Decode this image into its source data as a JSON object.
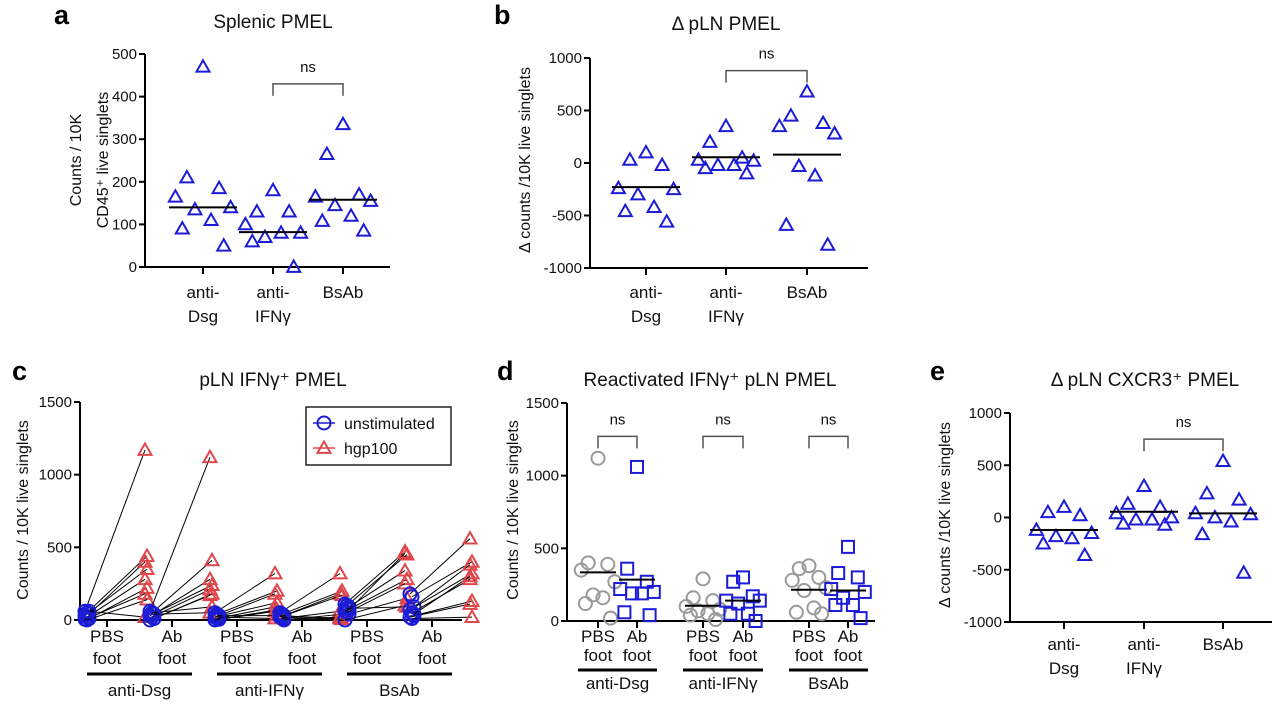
{
  "colors": {
    "blue": "#1c1cd6",
    "red": "#e0474c",
    "gray": "#9a9a9a",
    "axis": "#000000",
    "bracket": "#555555"
  },
  "chart_data": [
    {
      "id": "a",
      "letter": "a",
      "type": "scatter",
      "title": "Splenic PMEL",
      "ylabel": [
        "Counts / 10K",
        "CD45⁺ live singlets"
      ],
      "ylim": [
        0,
        500
      ],
      "yticks": [
        0,
        100,
        200,
        300,
        400,
        500
      ],
      "categories": [
        [
          "anti-",
          "Dsg"
        ],
        [
          "anti-",
          "IFNγ"
        ],
        [
          "BsAb"
        ]
      ],
      "marker": "triangle",
      "marker_color": "blue",
      "values": [
        [
          470,
          210,
          185,
          165,
          140,
          135,
          110,
          90,
          50
        ],
        [
          180,
          130,
          130,
          100,
          80,
          70,
          80,
          60,
          0
        ],
        [
          335,
          265,
          170,
          165,
          155,
          145,
          120,
          108,
          85
        ]
      ],
      "medians": [
        140,
        82,
        158
      ],
      "comparisons": [
        {
          "from": 1,
          "to": 2,
          "label": "ns",
          "at": 430
        }
      ]
    },
    {
      "id": "b",
      "letter": "b",
      "type": "scatter",
      "title": "Δ pLN PMEL",
      "ylabel": [
        "Δ counts /10K live singlets"
      ],
      "ylim": [
        -1000,
        1000
      ],
      "yticks": [
        -1000,
        -500,
        0,
        500,
        1000
      ],
      "categories": [
        [
          "anti-",
          "Dsg"
        ],
        [
          "anti-",
          "IFNγ"
        ],
        [
          "BsAb"
        ]
      ],
      "marker": "triangle",
      "marker_color": "blue",
      "values": [
        [
          100,
          30,
          -20,
          -240,
          -250,
          -300,
          -420,
          -460,
          -560
        ],
        [
          350,
          200,
          50,
          30,
          20,
          -20,
          -20,
          -50,
          -100
        ],
        [
          680,
          450,
          380,
          350,
          280,
          -30,
          -120,
          -590,
          -780
        ]
      ],
      "medians": [
        -230,
        55,
        80
      ],
      "comparisons": [
        {
          "from": 1,
          "to": 2,
          "label": "ns",
          "at": 880
        }
      ]
    },
    {
      "id": "c",
      "letter": "c",
      "type": "paired-line",
      "title": "pLN IFNγ⁺ PMEL",
      "ylabel": [
        "Counts / 10K live singlets"
      ],
      "ylim": [
        0,
        1500
      ],
      "yticks": [
        0,
        500,
        1000,
        1500
      ],
      "categories": [
        [
          "PBS",
          "foot"
        ],
        [
          "Ab",
          "foot"
        ],
        [
          "PBS",
          "foot"
        ],
        [
          "Ab",
          "foot"
        ],
        [
          "PBS",
          "foot"
        ],
        [
          "Ab",
          "foot"
        ]
      ],
      "groups": [
        "anti-Dsg",
        "anti-IFNγ",
        "BsAb"
      ],
      "legend": {
        "position": "top-right",
        "items": [
          {
            "label": "unstimulated",
            "marker": "circle",
            "color": "blue"
          },
          {
            "label": "hgp100",
            "marker": "triangle",
            "color": "red"
          }
        ]
      },
      "series": [
        {
          "name": "unstimulated",
          "values": [
            [
              60,
              50,
              40,
              30,
              20,
              10,
              5,
              0,
              60
            ],
            [
              60,
              50,
              40,
              30,
              20,
              10,
              0,
              50,
              40
            ],
            [
              50,
              40,
              30,
              20,
              10,
              5,
              0,
              30,
              20
            ],
            [
              50,
              40,
              30,
              20,
              10,
              0,
              30,
              20,
              5
            ],
            [
              110,
              100,
              90,
              60,
              50,
              40,
              0,
              80,
              70
            ],
            [
              180,
              160,
              90,
              70,
              50,
              30,
              20,
              10,
              40
            ]
          ]
        },
        {
          "name": "hgp100",
          "values": [
            [
              1170,
              440,
              400,
              350,
              280,
              220,
              180,
              140,
              20
            ],
            [
              1120,
              410,
              280,
              240,
              210,
              180,
              170,
              90,
              50
            ],
            [
              320,
              200,
              180,
              120,
              90,
              70,
              60,
              30,
              10
            ],
            [
              320,
              200,
              180,
              170,
              60,
              40,
              10,
              5,
              20
            ],
            [
              470,
              450,
              340,
              280,
              250,
              150,
              100,
              90,
              460
            ],
            [
              560,
              400,
              380,
              320,
              280,
              130,
              110,
              20,
              300
            ]
          ]
        }
      ]
    },
    {
      "id": "d",
      "letter": "d",
      "type": "scatter",
      "title": "Reactivated IFNγ⁺ pLN PMEL",
      "ylabel": [
        "Counts / 10K live singlets"
      ],
      "ylim": [
        0,
        1500
      ],
      "yticks": [
        0,
        500,
        1000,
        1500
      ],
      "categories": [
        [
          "PBS",
          "foot"
        ],
        [
          "Ab",
          "foot"
        ],
        [
          "PBS",
          "foot"
        ],
        [
          "Ab",
          "foot"
        ],
        [
          "PBS",
          "foot"
        ],
        [
          "Ab",
          "foot"
        ]
      ],
      "groups": [
        "anti-Dsg",
        "anti-IFNγ",
        "BsAb"
      ],
      "markers": [
        "circle",
        "square",
        "circle",
        "square",
        "circle",
        "square"
      ],
      "marker_colors": [
        "gray",
        "blue",
        "gray",
        "blue",
        "gray",
        "blue"
      ],
      "values": [
        [
          1120,
          400,
          390,
          350,
          270,
          180,
          160,
          120,
          20
        ],
        [
          1060,
          360,
          270,
          220,
          200,
          190,
          190,
          60,
          40
        ],
        [
          290,
          160,
          140,
          100,
          80,
          70,
          50,
          40,
          10
        ],
        [
          300,
          270,
          170,
          140,
          140,
          120,
          50,
          50,
          0
        ],
        [
          380,
          360,
          300,
          280,
          230,
          210,
          90,
          60,
          50
        ],
        [
          510,
          330,
          300,
          220,
          200,
          160,
          110,
          110,
          20
        ]
      ],
      "medians": [
        335,
        285,
        105,
        140,
        215,
        210
      ],
      "comparisons": [
        {
          "from": 0,
          "to": 1,
          "label": "ns",
          "at": 1270
        },
        {
          "from": 2,
          "to": 3,
          "label": "ns",
          "at": 1270
        },
        {
          "from": 4,
          "to": 5,
          "label": "ns",
          "at": 1270
        }
      ]
    },
    {
      "id": "e",
      "letter": "e",
      "type": "scatter",
      "title": "Δ pLN CXCR3⁺ PMEL",
      "ylabel": [
        "Δ counts /10K live singlets"
      ],
      "ylim": [
        -1000,
        1000
      ],
      "yticks": [
        -1000,
        -500,
        0,
        500,
        1000
      ],
      "categories": [
        [
          "anti-",
          "Dsg"
        ],
        [
          "anti-",
          "IFNγ"
        ],
        [
          "BsAb"
        ]
      ],
      "marker": "triangle",
      "marker_color": "blue",
      "values": [
        [
          100,
          50,
          20,
          -120,
          -150,
          -180,
          -200,
          -250,
          -360
        ],
        [
          300,
          130,
          100,
          40,
          0,
          -20,
          -20,
          -60,
          -70
        ],
        [
          540,
          230,
          170,
          40,
          30,
          0,
          -40,
          -160,
          -530
        ]
      ],
      "medians": [
        -120,
        55,
        40
      ],
      "comparisons": [
        {
          "from": 1,
          "to": 2,
          "label": "ns",
          "at": 750
        }
      ]
    }
  ]
}
